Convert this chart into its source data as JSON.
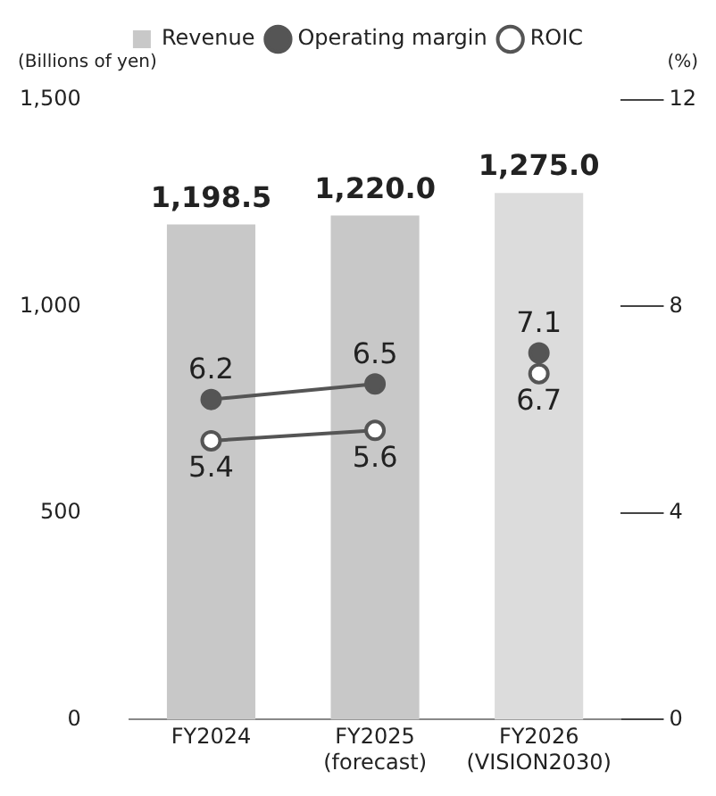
{
  "chart_data": {
    "type": "bar",
    "categories": [
      "FY2024",
      "FY2025 (forecast)",
      "FY2026 (VISION2030)"
    ],
    "ylabel": "(Billions of yen)",
    "y2label": "(%)",
    "ylim": [
      0,
      1500
    ],
    "yticks": [
      0,
      500,
      {
        "value": 1000,
        "label": "1,000"
      },
      {
        "value": 1500,
        "label": "1,500"
      }
    ],
    "y2lim": [
      0,
      12
    ],
    "y2ticks": [
      0,
      4,
      8,
      12
    ],
    "legend": "top",
    "grid": false,
    "marker": "circle",
    "series": [
      {
        "name": "Revenue",
        "colors": [
          "#c8c8c8",
          "#c8c8c8",
          "#dcdcdc"
        ],
        "values": [
          1198.5,
          1220.0,
          1275.0
        ],
        "value_labels": [
          "1,198.5",
          "1,220.0",
          "1,275.0"
        ]
      },
      {
        "name": "Operating margin",
        "type": "line",
        "axis": "y2",
        "color": "#555555",
        "values": [
          6.2,
          6.5,
          null
        ],
        "value_labels": [
          "6.2",
          "6.5",
          null
        ]
      },
      {
        "name": "ROIC",
        "type": "line",
        "axis": "y2",
        "color": "#555555",
        "values": [
          5.4,
          5.6,
          null
        ],
        "value_labels": [
          "5.4",
          "5.6",
          null
        ]
      },
      {
        "type": "scatter",
        "axis": "y2",
        "color": "#555555",
        "values": [
          null,
          null,
          7.1
        ],
        "value_labels": [
          null,
          null,
          "7.1"
        ]
      },
      {
        "type": "scatter",
        "axis": "y2",
        "color": "#555555",
        "values": [
          null,
          null,
          6.7
        ],
        "value_labels": [
          null,
          null,
          "6.7"
        ]
      }
    ]
  }
}
